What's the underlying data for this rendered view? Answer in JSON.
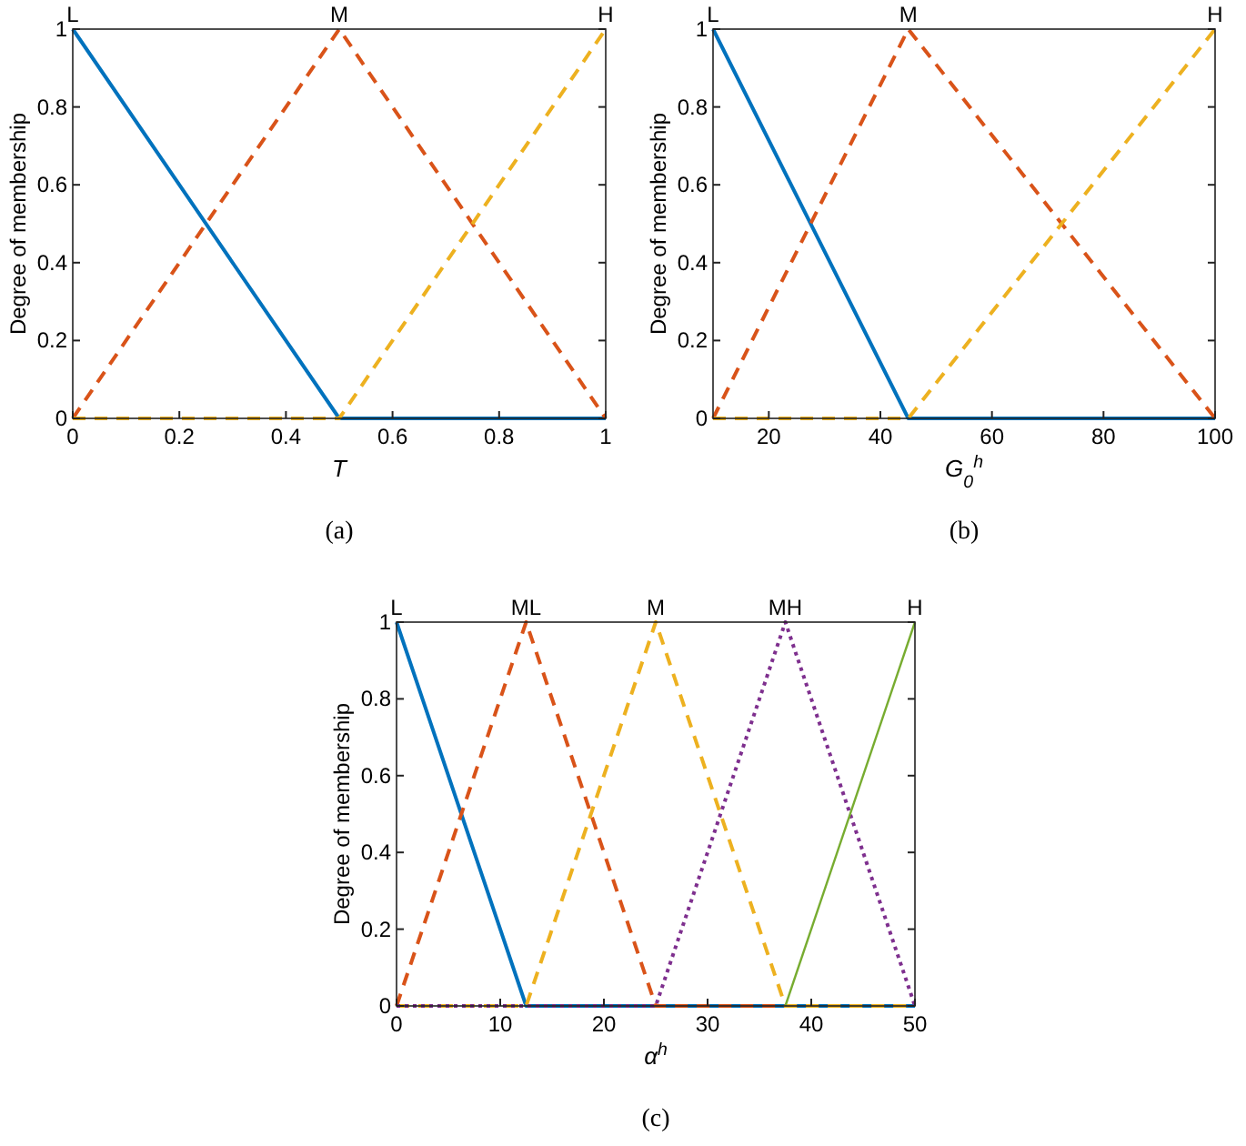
{
  "chart_data": [
    {
      "type": "line",
      "ylabel": "Degree of membership",
      "xlabel": "T",
      "annotations": [
        "(a)",
        {
          "text": "L",
          "x": 0,
          "y": 1
        },
        {
          "text": "M",
          "x": 0.5,
          "y": 1
        },
        {
          "text": "H",
          "x": 1,
          "y": 1
        }
      ],
      "xlim": [
        0,
        1
      ],
      "xticks": [
        0,
        0.2,
        0.4,
        0.6,
        0.8,
        1
      ],
      "ylim": [
        0,
        1
      ],
      "yticks": [
        0,
        0.2,
        0.4,
        0.6,
        0.8,
        1
      ],
      "grid": false,
      "series": [
        {
          "color": "#0072bd",
          "line_style": "solid",
          "x": [
            0,
            0.5,
            1
          ],
          "values": [
            1,
            0,
            0
          ]
        },
        {
          "color": "#d95319",
          "line_style": "dashed",
          "x": [
            0,
            0.5,
            1
          ],
          "values": [
            0,
            1,
            0
          ]
        },
        {
          "color": "#edb120",
          "line_style": "dashed",
          "x": [
            0,
            0.5,
            1
          ],
          "values": [
            0,
            0,
            1
          ]
        }
      ]
    },
    {
      "type": "line",
      "ylabel": "Degree of membership",
      "xlabel": "G$_{0}$$^{h}$",
      "annotations": [
        "(b)",
        {
          "text": "L",
          "x": 10,
          "y": 1
        },
        {
          "text": "M",
          "x": 45,
          "y": 1
        },
        {
          "text": "H",
          "x": 100,
          "y": 1
        }
      ],
      "xlim": [
        10,
        100
      ],
      "xticks": [
        20,
        40,
        60,
        80,
        100
      ],
      "ylim": [
        0,
        1
      ],
      "yticks": [
        0,
        0.2,
        0.4,
        0.6,
        0.8,
        1
      ],
      "grid": false,
      "series": [
        {
          "color": "#0072bd",
          "line_style": "solid",
          "x": [
            10,
            45,
            100
          ],
          "values": [
            1,
            0,
            0
          ]
        },
        {
          "color": "#d95319",
          "line_style": "dashed",
          "x": [
            10,
            45,
            100
          ],
          "values": [
            0,
            1,
            0
          ]
        },
        {
          "color": "#edb120",
          "line_style": "dashed",
          "x": [
            10,
            45,
            100
          ],
          "values": [
            0,
            0,
            1
          ]
        }
      ]
    },
    {
      "type": "line",
      "ylabel": "Degree of membership",
      "xlabel": "α$^{h}$",
      "annotations": [
        "(c)",
        {
          "text": "L",
          "x": 0,
          "y": 1
        },
        {
          "text": "ML",
          "x": 12.5,
          "y": 1
        },
        {
          "text": "M",
          "x": 25,
          "y": 1
        },
        {
          "text": "MH",
          "x": 37.5,
          "y": 1
        },
        {
          "text": "H",
          "x": 50,
          "y": 1
        }
      ],
      "xlim": [
        0,
        50
      ],
      "xticks": [
        0,
        10,
        20,
        30,
        40,
        50
      ],
      "ylim": [
        0,
        1
      ],
      "yticks": [
        0,
        0.2,
        0.4,
        0.6,
        0.8,
        1
      ],
      "grid": false,
      "series": [
        {
          "color": "#0072bd",
          "line_style": "solid",
          "x": [
            0,
            12.5,
            50
          ],
          "values": [
            1,
            0,
            0
          ]
        },
        {
          "color": "#d95319",
          "line_style": "dashed",
          "x": [
            0,
            12.5,
            25,
            50
          ],
          "values": [
            0,
            1,
            0,
            0
          ]
        },
        {
          "color": "#edb120",
          "line_style": "dashed",
          "x": [
            0,
            12.5,
            25,
            37.5,
            50
          ],
          "values": [
            0,
            0,
            1,
            0,
            0
          ]
        },
        {
          "color": "#7e2f8e",
          "line_style": "dotted",
          "x": [
            0,
            25,
            37.5,
            50
          ],
          "values": [
            0,
            0,
            1,
            0
          ]
        },
        {
          "color": "#77ac30",
          "line_style": "solid",
          "x": [
            37.5,
            50
          ],
          "values": [
            0,
            1
          ]
        }
      ]
    }
  ]
}
